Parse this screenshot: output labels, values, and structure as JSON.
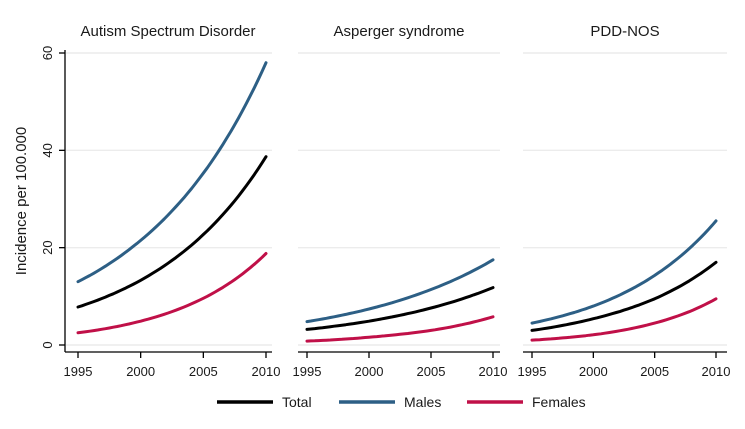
{
  "figure": {
    "ylabel": "Incidence per 100.000",
    "background": "#ffffff",
    "grid_color": "#ececec",
    "axis_color": "#000000",
    "legend_position": "bottom",
    "legend": [
      {
        "label": "Total",
        "color": "#000000"
      },
      {
        "label": "Males",
        "color": "#2d5f85"
      },
      {
        "label": "Females",
        "color": "#c01048"
      }
    ]
  },
  "chart_data": [
    {
      "type": "line",
      "title": "Autism Spectrum Disorder",
      "xlabel": "",
      "ylabel": "Incidence per 100.000",
      "x": [
        1995,
        2000,
        2005,
        2010
      ],
      "xticks": [
        1995,
        2000,
        2005,
        2010
      ],
      "yticks": [
        0,
        20,
        40,
        60
      ],
      "ylim": [
        0,
        60
      ],
      "grid": true,
      "series": [
        {
          "name": "Total",
          "values": [
            7.8,
            13.3,
            22.7,
            38.7
          ]
        },
        {
          "name": "Males",
          "values": [
            13.0,
            21.5,
            35.3,
            58.0
          ]
        },
        {
          "name": "Females",
          "values": [
            2.5,
            4.9,
            9.6,
            18.8
          ]
        }
      ]
    },
    {
      "type": "line",
      "title": "Asperger syndrome",
      "xlabel": "",
      "ylabel": "Incidence per 100.000",
      "x": [
        1995,
        2000,
        2005,
        2010
      ],
      "xticks": [
        1995,
        2000,
        2005,
        2010
      ],
      "yticks": [
        0,
        20,
        40,
        60
      ],
      "ylim": [
        0,
        60
      ],
      "grid": true,
      "series": [
        {
          "name": "Total",
          "values": [
            3.2,
            4.9,
            7.6,
            11.8
          ]
        },
        {
          "name": "Males",
          "values": [
            4.8,
            7.4,
            11.4,
            17.5
          ]
        },
        {
          "name": "Females",
          "values": [
            0.8,
            1.6,
            3.0,
            5.8
          ]
        }
      ]
    },
    {
      "type": "line",
      "title": "PDD-NOS",
      "xlabel": "",
      "ylabel": "Incidence per 100.000",
      "x": [
        1995,
        2000,
        2005,
        2010
      ],
      "xticks": [
        1995,
        2000,
        2005,
        2010
      ],
      "yticks": [
        0,
        20,
        40,
        60
      ],
      "ylim": [
        0,
        60
      ],
      "grid": true,
      "series": [
        {
          "name": "Total",
          "values": [
            3.0,
            5.4,
            9.5,
            17.0
          ]
        },
        {
          "name": "Males",
          "values": [
            4.5,
            8.0,
            14.3,
            25.5
          ]
        },
        {
          "name": "Females",
          "values": [
            1.0,
            2.1,
            4.5,
            9.5
          ]
        }
      ]
    }
  ]
}
